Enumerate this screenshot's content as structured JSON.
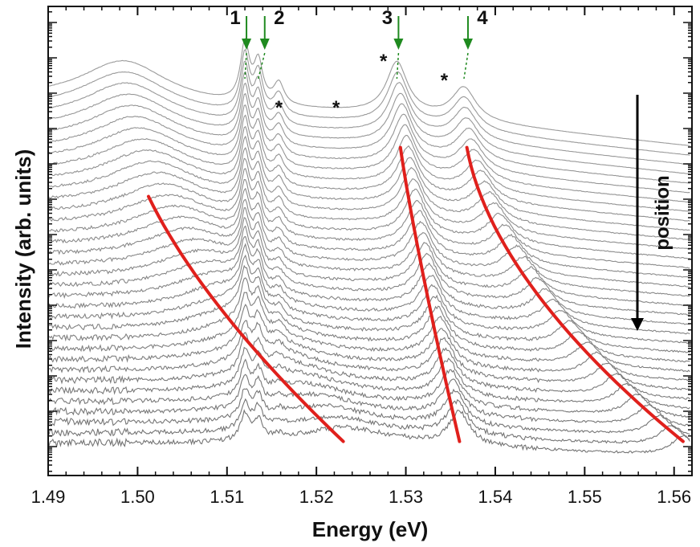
{
  "chart_data": {
    "type": "line",
    "xlabel": "Energy (eV)",
    "ylabel": "Intensity (arb. units)",
    "xlim": [
      1.49,
      1.562
    ],
    "x_ticks": [
      "1.49",
      "1.50",
      "1.51",
      "1.52",
      "1.53",
      "1.54",
      "1.55",
      "1.56"
    ],
    "y_scale": "log",
    "y_tick_labels": "none",
    "spectra_count": 34,
    "peaks": [
      {
        "label": "1",
        "energy": 1.512
      },
      {
        "label": "2",
        "energy": 1.5135
      },
      {
        "label": "3",
        "energy": 1.529
      },
      {
        "label": "4",
        "energy": 1.5365
      }
    ],
    "stars": [
      {
        "label": "*",
        "energy": 1.5158
      },
      {
        "label": "*",
        "energy": 1.5222
      },
      {
        "label": "*",
        "energy": 1.5275
      },
      {
        "label": "*",
        "energy": 1.5343
      }
    ],
    "annotation": "position",
    "colors": {
      "spectra": "#8a8a8a",
      "trace": "#e0201c",
      "marker": "#1f8a1f",
      "axis": "#111111"
    }
  }
}
